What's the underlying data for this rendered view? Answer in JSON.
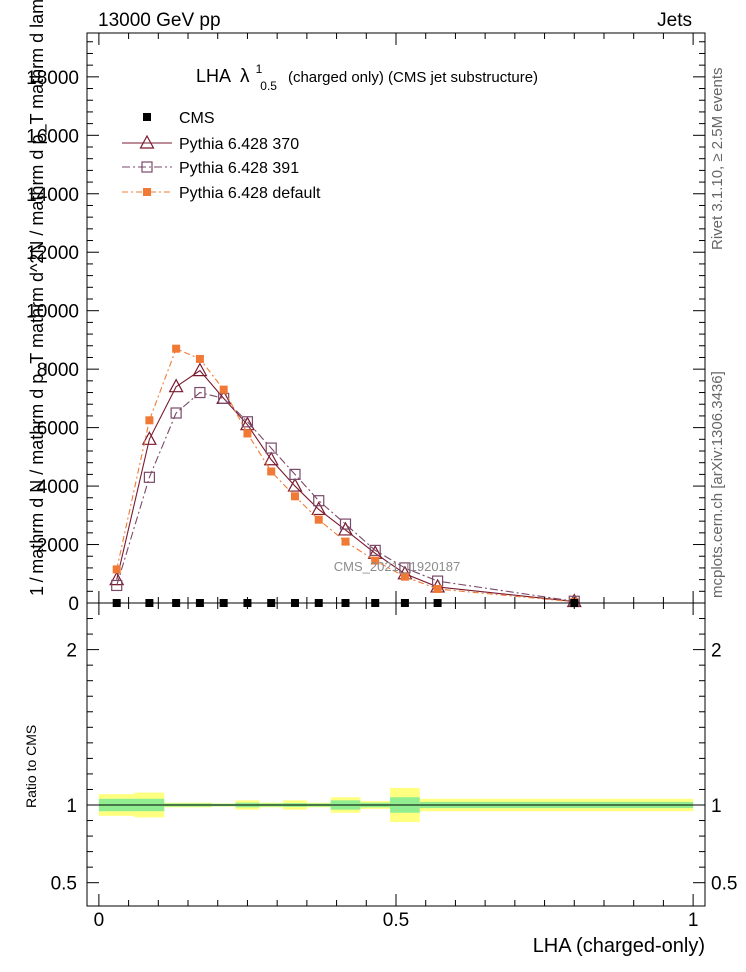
{
  "header": {
    "energy": "13000 GeV pp",
    "process": "Jets",
    "rivet_info": "Rivet 3.1.10, ≥ 2.5M events",
    "mcplots": "mcplots.cern.ch [arXiv:1306.3436]"
  },
  "chart_data": [
    {
      "type": "line",
      "title": "LHA",
      "title_lambda": "λ",
      "title_sup": "1",
      "title_sub": "0.5",
      "title_rest": "(charged only) (CMS jet substructure)",
      "ylabel_main": "1 / mathrm d N / mathrm d p_T  mathrm d^2N / mathrm d p_T mathrm d lambda",
      "analysis_label": "CMS_2021_I1920187",
      "xlim": [
        -0.02,
        1.02
      ],
      "ylim": [
        0,
        19500
      ],
      "yticks": [
        0,
        2000,
        4000,
        6000,
        8000,
        10000,
        12000,
        14000,
        16000,
        18000
      ],
      "ytick_labels": [
        "0",
        "2000",
        "4000",
        "6000",
        "8000",
        "10000",
        "12000",
        "14000",
        "16000",
        "18000"
      ],
      "legend_position": "top-left",
      "series": [
        {
          "name": "CMS",
          "color": "#000000",
          "marker": "filled-square",
          "x": [
            0.03,
            0.085,
            0.13,
            0.17,
            0.21,
            0.25,
            0.29,
            0.33,
            0.37,
            0.415,
            0.465,
            0.515,
            0.57,
            0.8
          ],
          "y": [
            0,
            0,
            0,
            0,
            0,
            0,
            0,
            0,
            0,
            0,
            0,
            0,
            0,
            0
          ]
        },
        {
          "name": "Pythia 6.428 370",
          "color": "#7a1a2f",
          "marker": "open-triangle",
          "dash": "solid",
          "x": [
            0.03,
            0.085,
            0.13,
            0.17,
            0.21,
            0.25,
            0.29,
            0.33,
            0.37,
            0.415,
            0.465,
            0.515,
            0.57,
            0.8
          ],
          "y": [
            800,
            5600,
            7400,
            7950,
            7000,
            6100,
            4900,
            4000,
            3200,
            2500,
            1700,
            1000,
            550,
            50
          ]
        },
        {
          "name": "Pythia 6.428 391",
          "color": "#7a4a6a",
          "marker": "open-square",
          "dash": "8,3,2,3",
          "x": [
            0.03,
            0.085,
            0.13,
            0.17,
            0.21,
            0.25,
            0.29,
            0.33,
            0.37,
            0.415,
            0.465,
            0.515,
            0.57,
            0.8
          ],
          "y": [
            600,
            4300,
            6500,
            7200,
            7000,
            6200,
            5300,
            4400,
            3500,
            2700,
            1800,
            1200,
            750,
            60
          ]
        },
        {
          "name": "Pythia 6.428 default",
          "color": "#f07a35",
          "marker": "filled-square",
          "dash": "6,3,2,3",
          "x": [
            0.03,
            0.085,
            0.13,
            0.17,
            0.21,
            0.25,
            0.29,
            0.33,
            0.37,
            0.415,
            0.465,
            0.515,
            0.57,
            0.8
          ],
          "y": [
            1150,
            6250,
            8700,
            8350,
            7300,
            5800,
            4500,
            3650,
            2850,
            2100,
            1450,
            900,
            480,
            40
          ]
        }
      ]
    },
    {
      "type": "area",
      "ylabel": "Ratio to CMS",
      "xlabel": "LHA (charged-only)",
      "xlim": [
        -0.02,
        1.02
      ],
      "ylim": [
        0.35,
        2.3
      ],
      "yticks": [
        0.5,
        1,
        2
      ],
      "ytick_labels": [
        "0.5",
        "1",
        "2"
      ],
      "xticks": [
        0,
        0.5,
        1
      ],
      "xtick_labels": [
        "0",
        "0.5",
        "1"
      ],
      "reference_line": 1,
      "bands": {
        "edges": [
          0.0,
          0.06,
          0.11,
          0.15,
          0.19,
          0.23,
          0.27,
          0.31,
          0.35,
          0.39,
          0.44,
          0.49,
          0.54,
          1.0
        ],
        "inner_color": "#90ee90",
        "outer_color": "#ffff80",
        "inner_half": [
          0.04,
          0.04,
          0.01,
          0.01,
          0.008,
          0.015,
          0.01,
          0.012,
          0.01,
          0.03,
          0.015,
          0.05,
          0.02
        ],
        "outer_half": [
          0.07,
          0.08,
          0.015,
          0.015,
          0.01,
          0.03,
          0.015,
          0.03,
          0.015,
          0.05,
          0.025,
          0.11,
          0.04
        ]
      }
    }
  ]
}
